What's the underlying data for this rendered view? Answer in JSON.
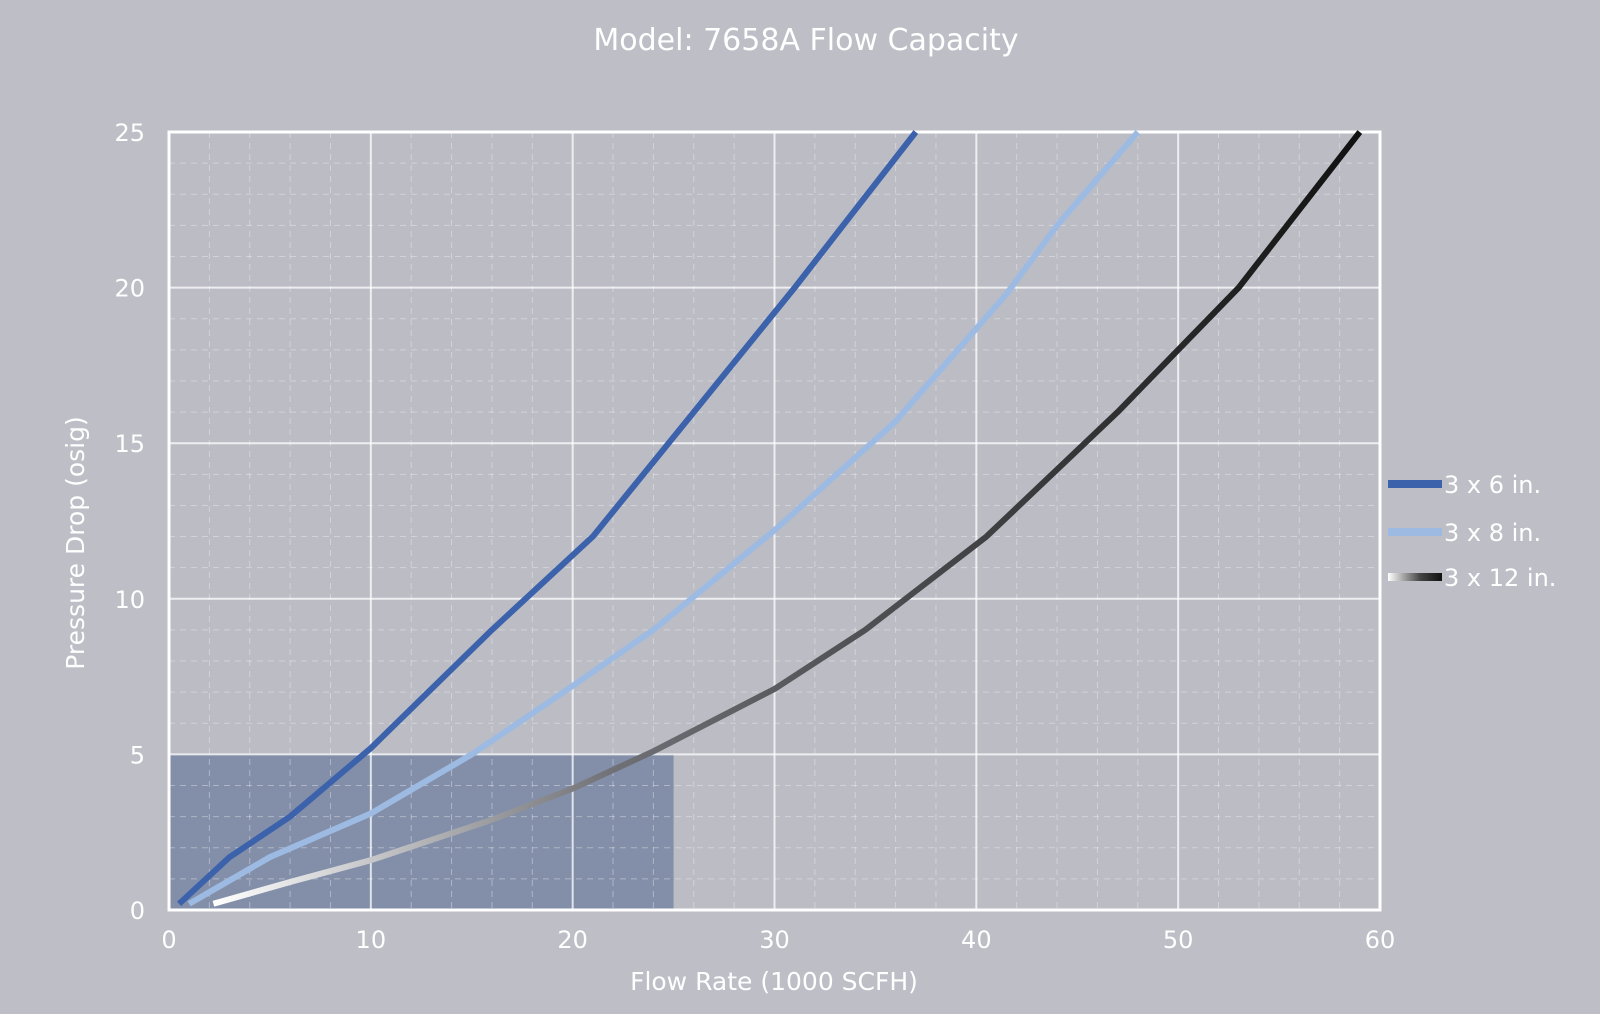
{
  "chart_data": {
    "type": "line",
    "title": "Model: 7658A Flow Capacity",
    "xlabel": "Flow Rate (1000 SCFH)",
    "ylabel": "Pressure Drop (osig)",
    "xlim": [
      0,
      60
    ],
    "ylim": [
      0,
      25
    ],
    "x_ticks": [
      "0",
      "10",
      "20",
      "30",
      "40",
      "50",
      "60"
    ],
    "y_ticks": [
      "0",
      "5",
      "10",
      "15",
      "20",
      "25"
    ],
    "grid": "major solid, minor dashed",
    "legend_position": "right",
    "highlight_region": {
      "x": [
        0,
        25
      ],
      "y": [
        0,
        5
      ],
      "color": "#7d8aa6"
    },
    "series": [
      {
        "name": "3 x 6 in.",
        "color": "#3b62ab",
        "points": [
          [
            0.5,
            0.2
          ],
          [
            3,
            1.7
          ],
          [
            6,
            3
          ],
          [
            10,
            5.2
          ],
          [
            16,
            9
          ],
          [
            21,
            12
          ],
          [
            26,
            16
          ],
          [
            31,
            20
          ],
          [
            34,
            22.5
          ],
          [
            37,
            25
          ]
        ]
      },
      {
        "name": "3 x 8 in.",
        "color": "#9dbbe2",
        "points": [
          [
            1,
            0.2
          ],
          [
            5,
            1.7
          ],
          [
            10,
            3.1
          ],
          [
            15,
            5
          ],
          [
            20,
            7.2
          ],
          [
            24,
            9
          ],
          [
            30,
            12.2
          ],
          [
            36,
            15.7
          ],
          [
            41.5,
            19.8
          ],
          [
            44,
            22
          ],
          [
            48,
            25
          ]
        ]
      },
      {
        "name": "3 x 12 in.",
        "color": "#1c1c1c",
        "color_start": "#ffffff",
        "points": [
          [
            2.2,
            0.2
          ],
          [
            6,
            0.9
          ],
          [
            10,
            1.6
          ],
          [
            16,
            2.9
          ],
          [
            20,
            3.9
          ],
          [
            24,
            5.1
          ],
          [
            30,
            7.1
          ],
          [
            34.5,
            9
          ],
          [
            40.5,
            12
          ],
          [
            47,
            16
          ],
          [
            53,
            20
          ],
          [
            59,
            25
          ]
        ]
      }
    ]
  }
}
